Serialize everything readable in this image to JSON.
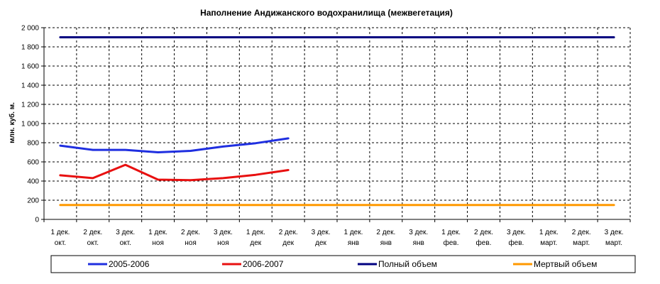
{
  "chart_data": {
    "type": "line",
    "title": "Наполнение Андижанского водохранилища (межвегетация)",
    "xlabel": "",
    "ylabel": "млн. куб. м.",
    "ylim": [
      0,
      2000
    ],
    "yticks": [
      "0",
      "200",
      "400",
      "600",
      "800",
      "1 000",
      "1 200",
      "1 400",
      "1 600",
      "1 800",
      "2 000"
    ],
    "categories": [
      [
        "1 дек.",
        "окт."
      ],
      [
        "2 дек.",
        "окт."
      ],
      [
        "3 дек.",
        "окт."
      ],
      [
        "1 дек.",
        "ноя"
      ],
      [
        "2 дек.",
        "ноя"
      ],
      [
        "3 дек.",
        "ноя"
      ],
      [
        "1 дек.",
        "дек"
      ],
      [
        "2 дек.",
        "дек"
      ],
      [
        "3 дек.",
        "дек"
      ],
      [
        "1 дек.",
        "янв"
      ],
      [
        "2 дек.",
        "янв"
      ],
      [
        "3 дек.",
        "янв"
      ],
      [
        "1 дек.",
        "фев."
      ],
      [
        "2 дек.",
        "фев."
      ],
      [
        "3 дек.",
        "фев."
      ],
      [
        "1 дек.",
        "март."
      ],
      [
        "2 дек.",
        "март."
      ],
      [
        "3 дек.",
        "март."
      ]
    ],
    "grid": true,
    "legend_position": "bottom",
    "series": [
      {
        "name": "2005-2006",
        "color": "#1f2fe0",
        "values": [
          770,
          725,
          725,
          700,
          715,
          760,
          795,
          845,
          null,
          null,
          null,
          null,
          null,
          null,
          null,
          null,
          null,
          null
        ]
      },
      {
        "name": "2006-2007",
        "color": "#e81010",
        "values": [
          460,
          430,
          570,
          415,
          410,
          430,
          465,
          515,
          null,
          null,
          null,
          null,
          null,
          null,
          null,
          null,
          null,
          null
        ]
      },
      {
        "name": "Полный объем",
        "color": "#000080",
        "values": [
          1900,
          1900,
          1900,
          1900,
          1900,
          1900,
          1900,
          1900,
          1900,
          1900,
          1900,
          1900,
          1900,
          1900,
          1900,
          1900,
          1900,
          1900
        ]
      },
      {
        "name": "Мертвый объем",
        "color": "#ff9900",
        "values": [
          150,
          150,
          150,
          150,
          150,
          150,
          150,
          150,
          150,
          150,
          150,
          150,
          150,
          150,
          150,
          150,
          150,
          150
        ]
      }
    ]
  }
}
